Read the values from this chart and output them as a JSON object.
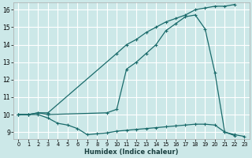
{
  "bg_color": "#cce8e8",
  "grid_color": "#ffffff",
  "line_color": "#1a6b6b",
  "marker": "+",
  "markersize": 3,
  "linewidth": 0.9,
  "xlabel": "Humidex (Indice chaleur)",
  "xlim": [
    -0.5,
    23.5
  ],
  "ylim": [
    8.6,
    16.4
  ],
  "xticks": [
    0,
    1,
    2,
    3,
    4,
    5,
    6,
    7,
    8,
    9,
    10,
    11,
    12,
    13,
    14,
    15,
    16,
    17,
    18,
    19,
    20,
    21,
    22,
    23
  ],
  "yticks": [
    9,
    10,
    11,
    12,
    13,
    14,
    15,
    16
  ],
  "line1_x": [
    0,
    1,
    2,
    3,
    10,
    11,
    12,
    13,
    14,
    15,
    16,
    17,
    18,
    19,
    20,
    21,
    22
  ],
  "line1_y": [
    10.0,
    10.0,
    10.1,
    10.1,
    13.5,
    14.0,
    14.3,
    14.7,
    15.0,
    15.3,
    15.5,
    15.7,
    16.0,
    16.1,
    16.2,
    16.2,
    16.3
  ],
  "line2_x": [
    0,
    1,
    2,
    3,
    9,
    10,
    11,
    12,
    13,
    14,
    15,
    16,
    17,
    18,
    19,
    20,
    21,
    22
  ],
  "line2_y": [
    10.0,
    10.0,
    10.1,
    10.0,
    10.1,
    10.3,
    12.6,
    13.0,
    13.5,
    14.0,
    14.8,
    15.2,
    15.6,
    15.7,
    14.9,
    12.4,
    9.0,
    8.8
  ],
  "line3_x": [
    0,
    1,
    2,
    3,
    4,
    5,
    6,
    7,
    8,
    9,
    10,
    11,
    12,
    13,
    14,
    15,
    16,
    17,
    18,
    19,
    20,
    21,
    22,
    23
  ],
  "line3_y": [
    10.0,
    10.0,
    10.0,
    9.8,
    9.5,
    9.4,
    9.2,
    8.85,
    8.9,
    8.95,
    9.05,
    9.1,
    9.15,
    9.2,
    9.25,
    9.3,
    9.35,
    9.4,
    9.45,
    9.45,
    9.4,
    9.0,
    8.85,
    8.75
  ]
}
